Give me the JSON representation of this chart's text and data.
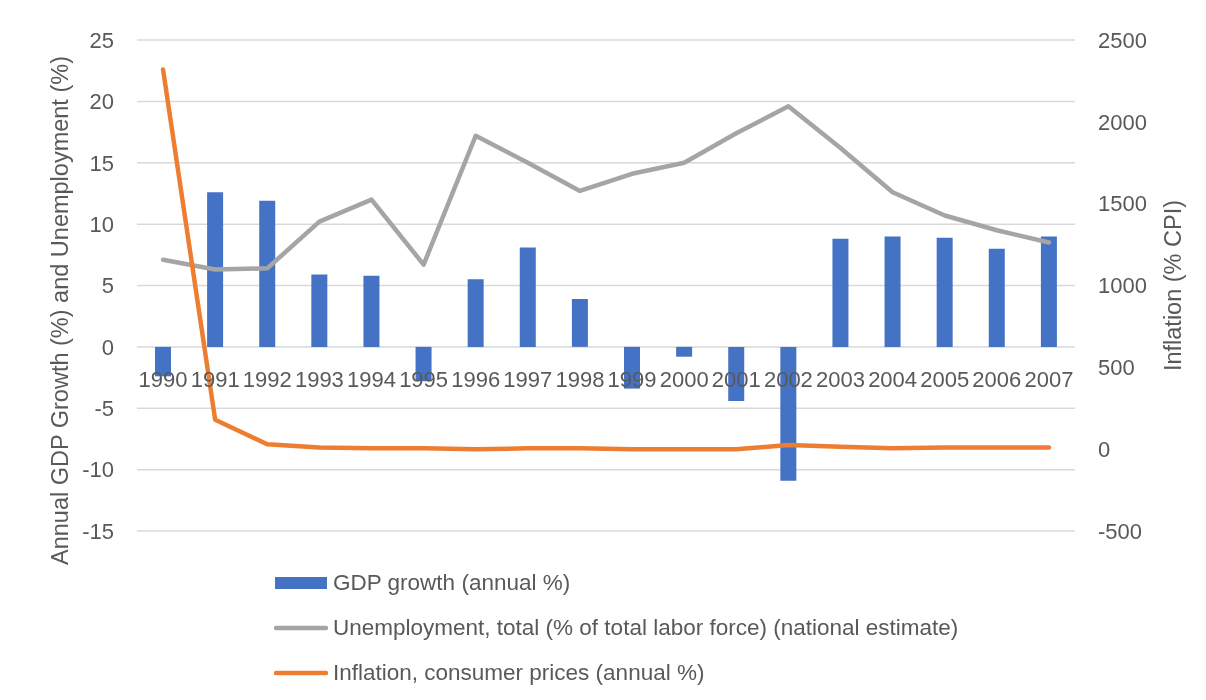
{
  "chart_data": {
    "type": "bar",
    "categories": [
      "1990",
      "1991",
      "1992",
      "1993",
      "1994",
      "1995",
      "1996",
      "1997",
      "1998",
      "1999",
      "2000",
      "2001",
      "2002",
      "2003",
      "2004",
      "2005",
      "2006",
      "2007"
    ],
    "ylabel": "Annual GDP Growth (%) and Unemployment (%)",
    "y2label": "Inflation (% CPI)",
    "ylim": [
      -15,
      25
    ],
    "yticks": [
      -15,
      -10,
      -5,
      0,
      5,
      10,
      15,
      20,
      25
    ],
    "y2lim": [
      -500,
      2500
    ],
    "y2ticks": [
      -500,
      0,
      500,
      1000,
      1500,
      2000,
      2500
    ],
    "grid": "y",
    "legend": "bottom",
    "line_style": "solid",
    "series": [
      {
        "name": "GDP growth (annual %)",
        "color": "#4472c4",
        "values": [
          -2.4,
          12.6,
          11.9,
          5.9,
          5.8,
          -2.8,
          5.5,
          8.1,
          3.9,
          -3.4,
          -0.8,
          -4.4,
          -10.9,
          8.8,
          9.0,
          8.9,
          8.0,
          9.0
        ]
      },
      {
        "name": "Unemployment, total (% of total labor force) (national estimate)",
        "type": "line",
        "color": "#a5a5a5",
        "values": [
          7.1,
          6.3,
          6.4,
          10.2,
          12.0,
          6.7,
          17.2,
          15.0,
          12.7,
          14.1,
          15.0,
          17.4,
          19.6,
          16.2,
          12.6,
          10.7,
          9.5,
          8.5
        ]
      },
      {
        "name": "Inflation, consumer prices (annual %)",
        "type": "line",
        "color": "#ed7d31",
        "axis": "y2",
        "values": [
          2320,
          180,
          30,
          10,
          5,
          5,
          0,
          5,
          5,
          0,
          0,
          0,
          25,
          15,
          5,
          10,
          10,
          10
        ]
      }
    ]
  }
}
